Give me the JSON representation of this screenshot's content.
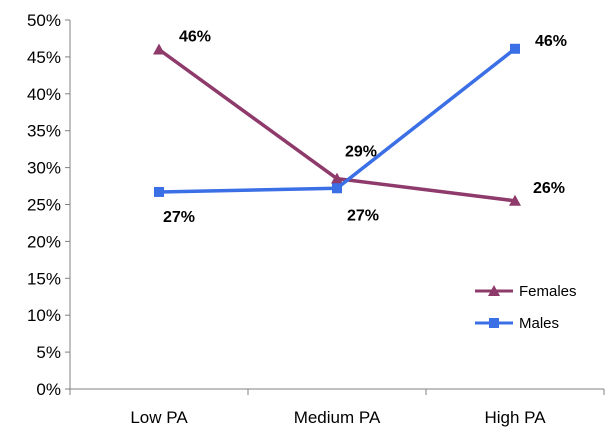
{
  "chart_data": {
    "type": "line",
    "categories": [
      "Low PA",
      "Medium PA",
      "High PA"
    ],
    "series": [
      {
        "name": "Females",
        "values": [
          46,
          28.5,
          25.5
        ],
        "labels": [
          "46%",
          "29%",
          "26%"
        ],
        "color": "#8e3a6b",
        "marker": "triangle"
      },
      {
        "name": "Males",
        "values": [
          26.7,
          27.2,
          46.1
        ],
        "labels": [
          "27%",
          "27%",
          "46%"
        ],
        "color": "#3b6fe6",
        "marker": "square"
      }
    ],
    "y_ticks": [
      "0%",
      "5%",
      "10%",
      "15%",
      "20%",
      "25%",
      "30%",
      "35%",
      "40%",
      "45%",
      "50%"
    ],
    "ylim": [
      0,
      50
    ],
    "grid": false,
    "legend_position": "bottom-right"
  }
}
